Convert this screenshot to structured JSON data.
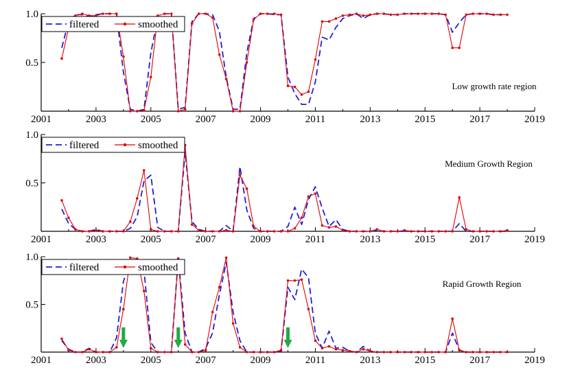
{
  "chart_data": [
    {
      "type": "line",
      "annotation": "Low growth rate region",
      "xlim": [
        2001,
        2019
      ],
      "ylim": [
        0,
        1.0
      ],
      "x_ticks": [
        "2001",
        "2003",
        "2005",
        "2007",
        "2009",
        "2011",
        "2013",
        "2015",
        "2017",
        "2019"
      ],
      "y_ticks": [
        "0.5",
        "1.0"
      ],
      "legend": {
        "placement": "top-left",
        "entries": [
          "filtered",
          "smoothed"
        ]
      },
      "series": [
        {
          "name": "filtered",
          "color": "#1f1fd6",
          "style": "dashed",
          "x": [
            2001.75,
            2002.0,
            2002.25,
            2002.5,
            2002.75,
            2003.0,
            2003.25,
            2003.5,
            2003.75,
            2004.0,
            2004.25,
            2004.5,
            2004.75,
            2005.0,
            2005.25,
            2005.5,
            2005.75,
            2006.0,
            2006.25,
            2006.5,
            2006.75,
            2007.0,
            2007.25,
            2007.5,
            2007.75,
            2008.0,
            2008.25,
            2008.5,
            2008.75,
            2009.0,
            2009.25,
            2009.5,
            2009.75,
            2010.0,
            2010.25,
            2010.5,
            2010.75,
            2011.0,
            2011.25,
            2011.5,
            2011.75,
            2012.0,
            2012.25,
            2012.5,
            2012.75,
            2013.0,
            2013.25,
            2013.5,
            2013.75,
            2014.0,
            2014.25,
            2014.5,
            2014.75,
            2015.0,
            2015.25,
            2015.5,
            2015.75,
            2016.0,
            2016.25,
            2016.5,
            2016.75,
            2017.0,
            2017.25,
            2017.5,
            2017.75,
            2018.0
          ],
          "y": [
            0.65,
            0.92,
            0.99,
            0.99,
            0.97,
            0.99,
            1.0,
            1.0,
            1.0,
            0.4,
            0.02,
            0.0,
            0.02,
            0.6,
            0.95,
            1.0,
            1.0,
            0.02,
            0.04,
            0.92,
            1.0,
            1.0,
            0.99,
            0.82,
            0.35,
            0.02,
            0.02,
            0.6,
            0.95,
            1.0,
            1.0,
            0.99,
            0.99,
            0.35,
            0.18,
            0.07,
            0.07,
            0.3,
            0.76,
            0.73,
            0.86,
            0.95,
            0.98,
            1.0,
            0.95,
            0.99,
            1.0,
            1.0,
            0.99,
            0.99,
            1.0,
            1.0,
            1.0,
            1.0,
            1.0,
            1.0,
            0.99,
            0.81,
            0.91,
            0.99,
            1.0,
            1.0,
            1.0,
            0.99,
            0.99,
            0.99
          ]
        },
        {
          "name": "smoothed",
          "color": "#e00000",
          "style": "solid",
          "x": [
            2001.75,
            2002.0,
            2002.25,
            2002.5,
            2002.75,
            2003.0,
            2003.25,
            2003.5,
            2003.75,
            2004.0,
            2004.25,
            2004.5,
            2004.75,
            2005.0,
            2005.25,
            2005.5,
            2005.75,
            2006.0,
            2006.25,
            2006.5,
            2006.75,
            2007.0,
            2007.25,
            2007.5,
            2007.75,
            2008.0,
            2008.25,
            2008.5,
            2008.75,
            2009.0,
            2009.25,
            2009.5,
            2009.75,
            2010.0,
            2010.25,
            2010.5,
            2010.75,
            2011.0,
            2011.25,
            2011.5,
            2011.75,
            2012.0,
            2012.25,
            2012.5,
            2012.75,
            2013.0,
            2013.25,
            2013.5,
            2013.75,
            2014.0,
            2014.25,
            2014.5,
            2014.75,
            2015.0,
            2015.25,
            2015.5,
            2015.75,
            2016.0,
            2016.25,
            2016.5,
            2016.75,
            2017.0,
            2017.25,
            2017.5,
            2017.75,
            2018.0
          ],
          "y": [
            0.54,
            0.85,
            0.98,
            1.0,
            0.98,
            0.98,
            1.0,
            1.0,
            1.0,
            0.56,
            0.0,
            0.0,
            0.01,
            0.35,
            0.98,
            1.0,
            1.0,
            0.0,
            0.02,
            0.9,
            1.0,
            1.0,
            0.96,
            0.58,
            0.33,
            0.0,
            0.0,
            0.5,
            0.94,
            1.0,
            1.0,
            1.0,
            0.99,
            0.26,
            0.25,
            0.17,
            0.2,
            0.53,
            0.92,
            0.92,
            0.95,
            0.98,
            0.99,
            1.0,
            0.98,
            0.99,
            1.0,
            1.0,
            0.99,
            0.99,
            1.0,
            1.0,
            1.0,
            1.0,
            1.0,
            1.0,
            0.99,
            0.65,
            0.65,
            0.99,
            1.0,
            1.0,
            1.0,
            0.99,
            0.99,
            0.99
          ]
        }
      ]
    },
    {
      "type": "line",
      "annotation": "Medium Growth Region",
      "xlim": [
        2001,
        2019
      ],
      "ylim": [
        0,
        1.0
      ],
      "x_ticks": [
        "2001",
        "2003",
        "2005",
        "2007",
        "2009",
        "2011",
        "2013",
        "2015",
        "2017",
        "2019"
      ],
      "y_ticks": [
        "0.5",
        "1.0"
      ],
      "legend": {
        "placement": "top-left",
        "entries": [
          "filtered",
          "smoothed"
        ]
      },
      "series": [
        {
          "name": "filtered",
          "color": "#1f1fd6",
          "style": "dashed",
          "x": [
            2001.75,
            2002.0,
            2002.25,
            2002.5,
            2002.75,
            2003.0,
            2003.25,
            2003.5,
            2003.75,
            2004.0,
            2004.25,
            2004.5,
            2004.75,
            2005.0,
            2005.25,
            2005.5,
            2005.75,
            2006.0,
            2006.25,
            2006.5,
            2006.75,
            2007.0,
            2007.25,
            2007.5,
            2007.75,
            2008.0,
            2008.25,
            2008.5,
            2008.75,
            2009.0,
            2009.25,
            2009.5,
            2009.75,
            2010.0,
            2010.25,
            2010.5,
            2010.75,
            2011.0,
            2011.25,
            2011.5,
            2011.75,
            2012.0,
            2012.25,
            2012.5,
            2012.75,
            2013.0,
            2013.25,
            2013.5,
            2013.75,
            2014.0,
            2014.25,
            2014.5,
            2014.75,
            2015.0,
            2015.25,
            2015.5,
            2015.75,
            2016.0,
            2016.25,
            2016.5,
            2016.75,
            2017.0,
            2017.25,
            2017.5,
            2017.75,
            2018.0
          ],
          "y": [
            0.23,
            0.08,
            0.02,
            0.0,
            0.0,
            0.02,
            0.0,
            0.0,
            0.0,
            0.0,
            0.03,
            0.15,
            0.52,
            0.58,
            0.04,
            0.0,
            0.0,
            0.0,
            0.82,
            0.1,
            0.02,
            0.0,
            0.0,
            0.0,
            0.06,
            0.0,
            0.67,
            0.22,
            0.03,
            0.0,
            0.0,
            0.0,
            0.0,
            0.05,
            0.25,
            0.07,
            0.33,
            0.46,
            0.24,
            0.05,
            0.12,
            0.02,
            0.0,
            0.0,
            0.0,
            0.0,
            0.01,
            0.0,
            0.0,
            0.0,
            0.0,
            0.0,
            0.0,
            0.0,
            0.0,
            0.0,
            0.0,
            0.0,
            0.08,
            0.0,
            0.0,
            0.0,
            0.0,
            0.0,
            0.0,
            0.0
          ]
        },
        {
          "name": "smoothed",
          "color": "#e00000",
          "style": "solid",
          "x": [
            2001.75,
            2002.0,
            2002.25,
            2002.5,
            2002.75,
            2003.0,
            2003.25,
            2003.5,
            2003.75,
            2004.0,
            2004.25,
            2004.5,
            2004.75,
            2005.0,
            2005.25,
            2005.5,
            2005.75,
            2006.0,
            2006.25,
            2006.5,
            2006.75,
            2007.0,
            2007.25,
            2007.5,
            2007.75,
            2008.0,
            2008.25,
            2008.5,
            2008.75,
            2009.0,
            2009.25,
            2009.5,
            2009.75,
            2010.0,
            2010.25,
            2010.5,
            2010.75,
            2011.0,
            2011.25,
            2011.5,
            2011.75,
            2012.0,
            2012.25,
            2012.5,
            2012.75,
            2013.0,
            2013.25,
            2013.5,
            2013.75,
            2014.0,
            2014.25,
            2014.5,
            2014.75,
            2015.0,
            2015.25,
            2015.5,
            2015.75,
            2016.0,
            2016.25,
            2016.5,
            2016.75,
            2017.0,
            2017.25,
            2017.5,
            2017.75,
            2018.0
          ],
          "y": [
            0.32,
            0.14,
            0.02,
            0.0,
            0.0,
            0.01,
            0.0,
            0.0,
            0.0,
            0.0,
            0.1,
            0.34,
            0.63,
            0.02,
            0.0,
            0.0,
            0.0,
            0.0,
            0.89,
            0.07,
            0.01,
            0.0,
            0.0,
            0.0,
            0.01,
            0.0,
            0.58,
            0.44,
            0.05,
            0.0,
            0.0,
            0.0,
            0.0,
            0.0,
            0.03,
            0.14,
            0.36,
            0.39,
            0.06,
            0.04,
            0.05,
            0.01,
            0.0,
            0.0,
            0.0,
            0.0,
            0.02,
            0.0,
            0.0,
            0.0,
            0.01,
            0.0,
            0.0,
            0.0,
            0.0,
            0.0,
            0.0,
            0.0,
            0.35,
            0.02,
            0.0,
            0.0,
            0.0,
            0.0,
            0.0,
            0.01
          ]
        }
      ]
    },
    {
      "type": "line",
      "annotation": "Rapid Growth Region",
      "xlim": [
        2001,
        2019
      ],
      "ylim": [
        0,
        1.0
      ],
      "x_ticks": [
        "2001",
        "2003",
        "2005",
        "2007",
        "2009",
        "2011",
        "2013",
        "2015",
        "2017",
        "2019"
      ],
      "y_ticks": [
        "0.5",
        "1.0"
      ],
      "legend": {
        "placement": "top-left",
        "entries": [
          "filtered",
          "smoothed"
        ]
      },
      "arrows": {
        "color": "#22aa44",
        "x": [
          2004.0,
          2006.0,
          2010.0
        ]
      },
      "series": [
        {
          "name": "filtered",
          "color": "#1f1fd6",
          "style": "dashed",
          "x": [
            2001.75,
            2002.0,
            2002.25,
            2002.5,
            2002.75,
            2003.0,
            2003.25,
            2003.5,
            2003.75,
            2004.0,
            2004.25,
            2004.5,
            2004.75,
            2005.0,
            2005.25,
            2005.5,
            2005.75,
            2006.0,
            2006.25,
            2006.5,
            2006.75,
            2007.0,
            2007.25,
            2007.5,
            2007.75,
            2008.0,
            2008.25,
            2008.5,
            2008.75,
            2009.0,
            2009.25,
            2009.5,
            2009.75,
            2010.0,
            2010.25,
            2010.5,
            2010.75,
            2011.0,
            2011.25,
            2011.5,
            2011.75,
            2012.0,
            2012.25,
            2012.5,
            2012.75,
            2013.0,
            2013.25,
            2013.5,
            2013.75,
            2014.0,
            2014.25,
            2014.5,
            2014.75,
            2015.0,
            2015.25,
            2015.5,
            2015.75,
            2016.0,
            2016.25,
            2016.5,
            2016.75,
            2017.0,
            2017.25,
            2017.5,
            2017.75,
            2018.0
          ],
          "y": [
            0.12,
            0.03,
            0.0,
            0.0,
            0.04,
            0.0,
            0.0,
            0.0,
            0.15,
            0.74,
            0.96,
            0.93,
            0.86,
            0.1,
            0.0,
            0.0,
            0.0,
            0.99,
            0.2,
            0.0,
            0.0,
            0.04,
            0.2,
            0.6,
            0.94,
            0.42,
            0.12,
            0.0,
            0.0,
            0.0,
            0.0,
            0.0,
            0.01,
            0.68,
            0.55,
            0.87,
            0.78,
            0.2,
            0.04,
            0.22,
            0.04,
            0.05,
            0.01,
            0.0,
            0.06,
            0.01,
            0.0,
            0.0,
            0.0,
            0.0,
            0.0,
            0.0,
            0.0,
            0.0,
            0.0,
            0.0,
            0.0,
            0.2,
            0.02,
            0.0,
            0.0,
            0.0,
            0.0,
            0.0,
            0.0,
            0.0
          ]
        },
        {
          "name": "smoothed",
          "color": "#e00000",
          "style": "solid",
          "x": [
            2001.75,
            2002.0,
            2002.25,
            2002.5,
            2002.75,
            2003.0,
            2003.25,
            2003.5,
            2003.75,
            2004.0,
            2004.25,
            2004.5,
            2004.75,
            2005.0,
            2005.25,
            2005.5,
            2005.75,
            2006.0,
            2006.25,
            2006.5,
            2006.75,
            2007.0,
            2007.25,
            2007.5,
            2007.75,
            2008.0,
            2008.25,
            2008.5,
            2008.75,
            2009.0,
            2009.25,
            2009.5,
            2009.75,
            2010.0,
            2010.25,
            2010.5,
            2010.75,
            2011.0,
            2011.25,
            2011.5,
            2011.75,
            2012.0,
            2012.25,
            2012.5,
            2012.75,
            2013.0,
            2013.25,
            2013.5,
            2013.75,
            2014.0,
            2014.25,
            2014.5,
            2014.75,
            2015.0,
            2015.25,
            2015.5,
            2015.75,
            2016.0,
            2016.25,
            2016.5,
            2016.75,
            2017.0,
            2017.25,
            2017.5,
            2017.75,
            2018.0
          ],
          "y": [
            0.14,
            0.02,
            0.0,
            0.0,
            0.03,
            0.0,
            0.0,
            0.0,
            0.05,
            0.45,
            0.99,
            0.98,
            0.64,
            0.04,
            0.0,
            0.0,
            0.0,
            0.98,
            0.08,
            0.0,
            0.0,
            0.02,
            0.42,
            0.68,
            0.99,
            0.3,
            0.05,
            0.0,
            0.0,
            0.0,
            0.0,
            0.0,
            0.02,
            0.75,
            0.75,
            0.76,
            0.45,
            0.12,
            0.04,
            0.06,
            0.03,
            0.02,
            0.01,
            0.0,
            0.03,
            0.01,
            0.0,
            0.0,
            0.0,
            0.0,
            0.0,
            0.0,
            0.0,
            0.0,
            0.0,
            0.0,
            0.0,
            0.35,
            0.02,
            0.0,
            0.0,
            0.0,
            0.0,
            0.0,
            0.0,
            0.0
          ]
        }
      ]
    }
  ]
}
